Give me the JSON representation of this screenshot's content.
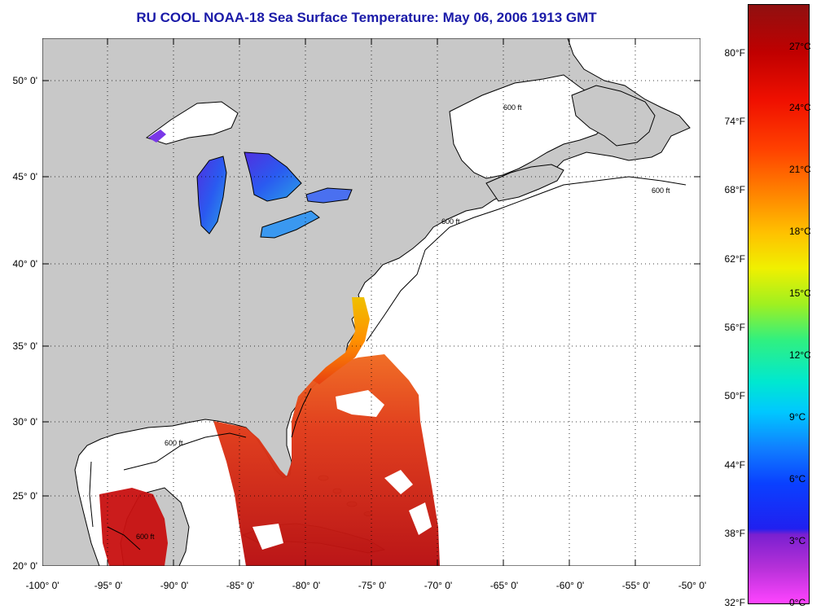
{
  "title": "RU COOL  NOAA-18  Sea Surface Temperature:  May 06, 2006 1913 GMT",
  "lat_labels": [
    "50° 0'",
    "45° 0'",
    "40° 0'",
    "35° 0'",
    "30° 0'",
    "25° 0'",
    "20° 0'"
  ],
  "lon_labels": [
    "-100° 0'",
    "-95° 0'",
    "-90° 0'",
    "-85° 0'",
    "-80° 0'",
    "-75° 0'",
    "-70° 0'",
    "-65° 0'",
    "-60° 0'",
    "-55° 0'",
    "-50° 0'"
  ],
  "colorbar": {
    "fahrenheit": [
      "80°F",
      "74°F",
      "68°F",
      "62°F",
      "56°F",
      "50°F",
      "44°F",
      "38°F",
      "32°F"
    ],
    "celsius": [
      "27°C",
      "24°C",
      "21°C",
      "18°C",
      "15°C",
      "12°C",
      "9°C",
      "6°C",
      "3°C",
      "0°C"
    ]
  },
  "contour_label": "600 ft",
  "colors": {
    "land": "#c8c8c8",
    "ocean": "#ffffff",
    "title": "#1a1aa8",
    "warm_sst": "#d83018",
    "cold_lake": "#3050f0"
  },
  "extent": {
    "lon": [
      -100,
      -50
    ],
    "lat": [
      20,
      52.5
    ]
  }
}
